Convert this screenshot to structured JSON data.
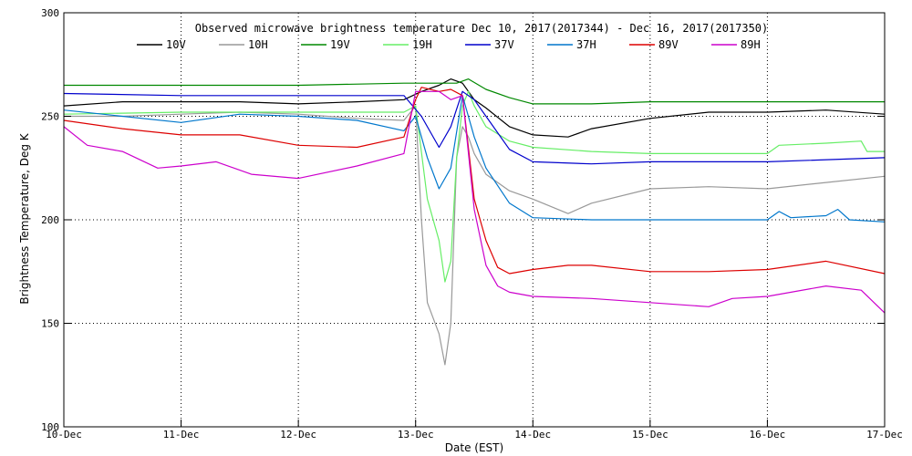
{
  "chart_data": {
    "type": "line",
    "title": "Observed microwave brightness temperature Dec 10, 2017(2017344) - Dec 16, 2017(2017350)",
    "xlabel": "Date (EST)",
    "ylabel": "Brightness Temperature, Deg K",
    "xlim": [
      0,
      7
    ],
    "ylim": [
      100,
      300
    ],
    "xticks": [
      0,
      1,
      2,
      3,
      4,
      5,
      6,
      7
    ],
    "xticklabels": [
      "10-Dec",
      "11-Dec",
      "12-Dec",
      "13-Dec",
      "14-Dec",
      "15-Dec",
      "16-Dec",
      "17-Dec"
    ],
    "yticks": [
      100,
      150,
      200,
      250,
      300
    ],
    "yticklabels": [
      "100",
      "150",
      "200",
      "250",
      "300"
    ],
    "grid": true,
    "legend_position": "top",
    "series": [
      {
        "name": "10V",
        "color": "#000000",
        "x": [
          0,
          0.5,
          1,
          1.5,
          2,
          2.5,
          2.9,
          3.05,
          3.2,
          3.3,
          3.4,
          3.5,
          3.6,
          3.8,
          4.0,
          4.3,
          4.5,
          5.0,
          5.5,
          6.0,
          6.5,
          7.0
        ],
        "y": [
          255,
          257,
          257,
          257,
          256,
          257,
          258,
          262,
          265,
          268,
          266,
          258,
          254,
          245,
          241,
          240,
          244,
          249,
          252,
          252,
          253,
          251
        ]
      },
      {
        "name": "10H",
        "color": "#999999",
        "x": [
          0,
          0.5,
          1,
          1.5,
          2,
          2.5,
          2.9,
          3.0,
          3.05,
          3.1,
          3.2,
          3.25,
          3.3,
          3.35,
          3.4,
          3.45,
          3.5,
          3.6,
          3.7,
          3.8,
          4.0,
          4.3,
          4.5,
          5.0,
          5.5,
          6.0,
          6.5,
          7.0
        ],
        "y": [
          250,
          250,
          251,
          252,
          251,
          249,
          248,
          255,
          200,
          160,
          145,
          130,
          150,
          230,
          245,
          240,
          232,
          222,
          218,
          214,
          210,
          203,
          208,
          215,
          216,
          215,
          218,
          221
        ]
      },
      {
        "name": "19V",
        "color": "#008800",
        "x": [
          0,
          1,
          2,
          2.9,
          3.2,
          3.35,
          3.45,
          3.6,
          3.8,
          4.0,
          4.5,
          5.0,
          6.0,
          7.0
        ],
        "y": [
          265,
          265,
          265,
          266,
          266,
          266,
          268,
          263,
          259,
          256,
          256,
          257,
          257,
          257
        ]
      },
      {
        "name": "19H",
        "color": "#66ee66",
        "x": [
          0,
          1,
          2,
          2.5,
          2.9,
          3.0,
          3.1,
          3.2,
          3.25,
          3.3,
          3.35,
          3.4,
          3.45,
          3.5,
          3.6,
          3.8,
          4.0,
          4.5,
          5.0,
          5.5,
          6.0,
          6.1,
          6.5,
          6.8,
          6.85,
          7.0
        ],
        "y": [
          251,
          252,
          252,
          252,
          252,
          255,
          210,
          190,
          170,
          180,
          230,
          255,
          262,
          255,
          245,
          238,
          235,
          233,
          232,
          232,
          232,
          236,
          237,
          238,
          233,
          233
        ]
      },
      {
        "name": "37V",
        "color": "#0000cc",
        "x": [
          0,
          1,
          2,
          2.9,
          3.05,
          3.2,
          3.3,
          3.4,
          3.5,
          3.6,
          3.8,
          4.0,
          4.5,
          5.0,
          6.0,
          7.0
        ],
        "y": [
          261,
          260,
          260,
          260,
          250,
          235,
          245,
          262,
          258,
          250,
          234,
          228,
          227,
          228,
          228,
          230
        ]
      },
      {
        "name": "37H",
        "color": "#0077cc",
        "x": [
          0,
          0.5,
          1,
          1.5,
          2,
          2.5,
          2.9,
          3.0,
          3.1,
          3.2,
          3.3,
          3.4,
          3.5,
          3.6,
          3.8,
          4.0,
          4.5,
          5.0,
          6.0,
          6.1,
          6.2,
          6.5,
          6.6,
          6.7,
          7.0
        ],
        "y": [
          253,
          250,
          247,
          251,
          250,
          248,
          243,
          250,
          230,
          215,
          225,
          260,
          240,
          225,
          208,
          201,
          200,
          200,
          200,
          204,
          201,
          202,
          205,
          200,
          199
        ]
      },
      {
        "name": "89V",
        "color": "#dd0000",
        "x": [
          0,
          0.5,
          1,
          1.5,
          2,
          2.5,
          2.9,
          3.0,
          3.05,
          3.2,
          3.3,
          3.4,
          3.5,
          3.6,
          3.7,
          3.8,
          4.0,
          4.3,
          4.5,
          5.0,
          5.5,
          6.0,
          6.5,
          7.0
        ],
        "y": [
          248,
          244,
          241,
          241,
          236,
          235,
          240,
          258,
          264,
          262,
          263,
          260,
          210,
          190,
          177,
          174,
          176,
          178,
          178,
          175,
          175,
          176,
          180,
          174
        ]
      },
      {
        "name": "89H",
        "color": "#cc00cc",
        "x": [
          0,
          0.2,
          0.5,
          0.8,
          1,
          1.3,
          1.6,
          2.0,
          2.5,
          2.9,
          3.0,
          3.05,
          3.2,
          3.3,
          3.4,
          3.5,
          3.6,
          3.7,
          3.8,
          4.0,
          4.5,
          5.0,
          5.5,
          5.7,
          6.0,
          6.5,
          6.8,
          7.0
        ],
        "y": [
          245,
          236,
          233,
          225,
          226,
          228,
          222,
          220,
          226,
          232,
          262,
          262,
          262,
          258,
          260,
          205,
          178,
          168,
          165,
          163,
          162,
          160,
          158,
          162,
          163,
          168,
          166,
          155
        ]
      }
    ]
  }
}
